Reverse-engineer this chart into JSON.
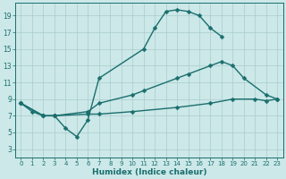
{
  "bg_color": "#cce8e8",
  "grid_color": "#aacccc",
  "line_color": "#1a6e6e",
  "line_width": 1.0,
  "marker": "D",
  "marker_size": 2.5,
  "xlabel": "Humidex (Indice chaleur)",
  "xlabel_fontsize": 6.5,
  "tick_fontsize": 5.5,
  "xlim": [
    -0.5,
    23.5
  ],
  "ylim": [
    2.0,
    20.5
  ],
  "xticks": [
    0,
    1,
    2,
    3,
    4,
    5,
    6,
    7,
    8,
    9,
    10,
    11,
    12,
    13,
    14,
    15,
    16,
    17,
    18,
    19,
    20,
    21,
    22,
    23
  ],
  "yticks": [
    3,
    5,
    7,
    9,
    11,
    13,
    15,
    17,
    19
  ],
  "line1_x": [
    0,
    1,
    2,
    3,
    4,
    5,
    6,
    7,
    11,
    12,
    13,
    14,
    15,
    16,
    17,
    18
  ],
  "line1_y": [
    8.5,
    7.5,
    7.0,
    7.0,
    5.5,
    4.5,
    6.5,
    11.5,
    15.0,
    17.5,
    19.5,
    19.7,
    19.5,
    19.0,
    17.5,
    16.5
  ],
  "line2_x": [
    0,
    2,
    3,
    6,
    7,
    10,
    11,
    14,
    15,
    17,
    18,
    19,
    20,
    22,
    23
  ],
  "line2_y": [
    8.5,
    7.0,
    7.0,
    7.5,
    8.5,
    9.5,
    10.0,
    11.5,
    12.0,
    13.0,
    13.5,
    13.0,
    11.5,
    9.5,
    9.0
  ],
  "line3_x": [
    0,
    2,
    3,
    6,
    7,
    10,
    14,
    17,
    19,
    21,
    22,
    23
  ],
  "line3_y": [
    8.5,
    7.0,
    7.0,
    7.2,
    7.2,
    7.5,
    8.0,
    8.5,
    9.0,
    9.0,
    8.8,
    9.0
  ]
}
